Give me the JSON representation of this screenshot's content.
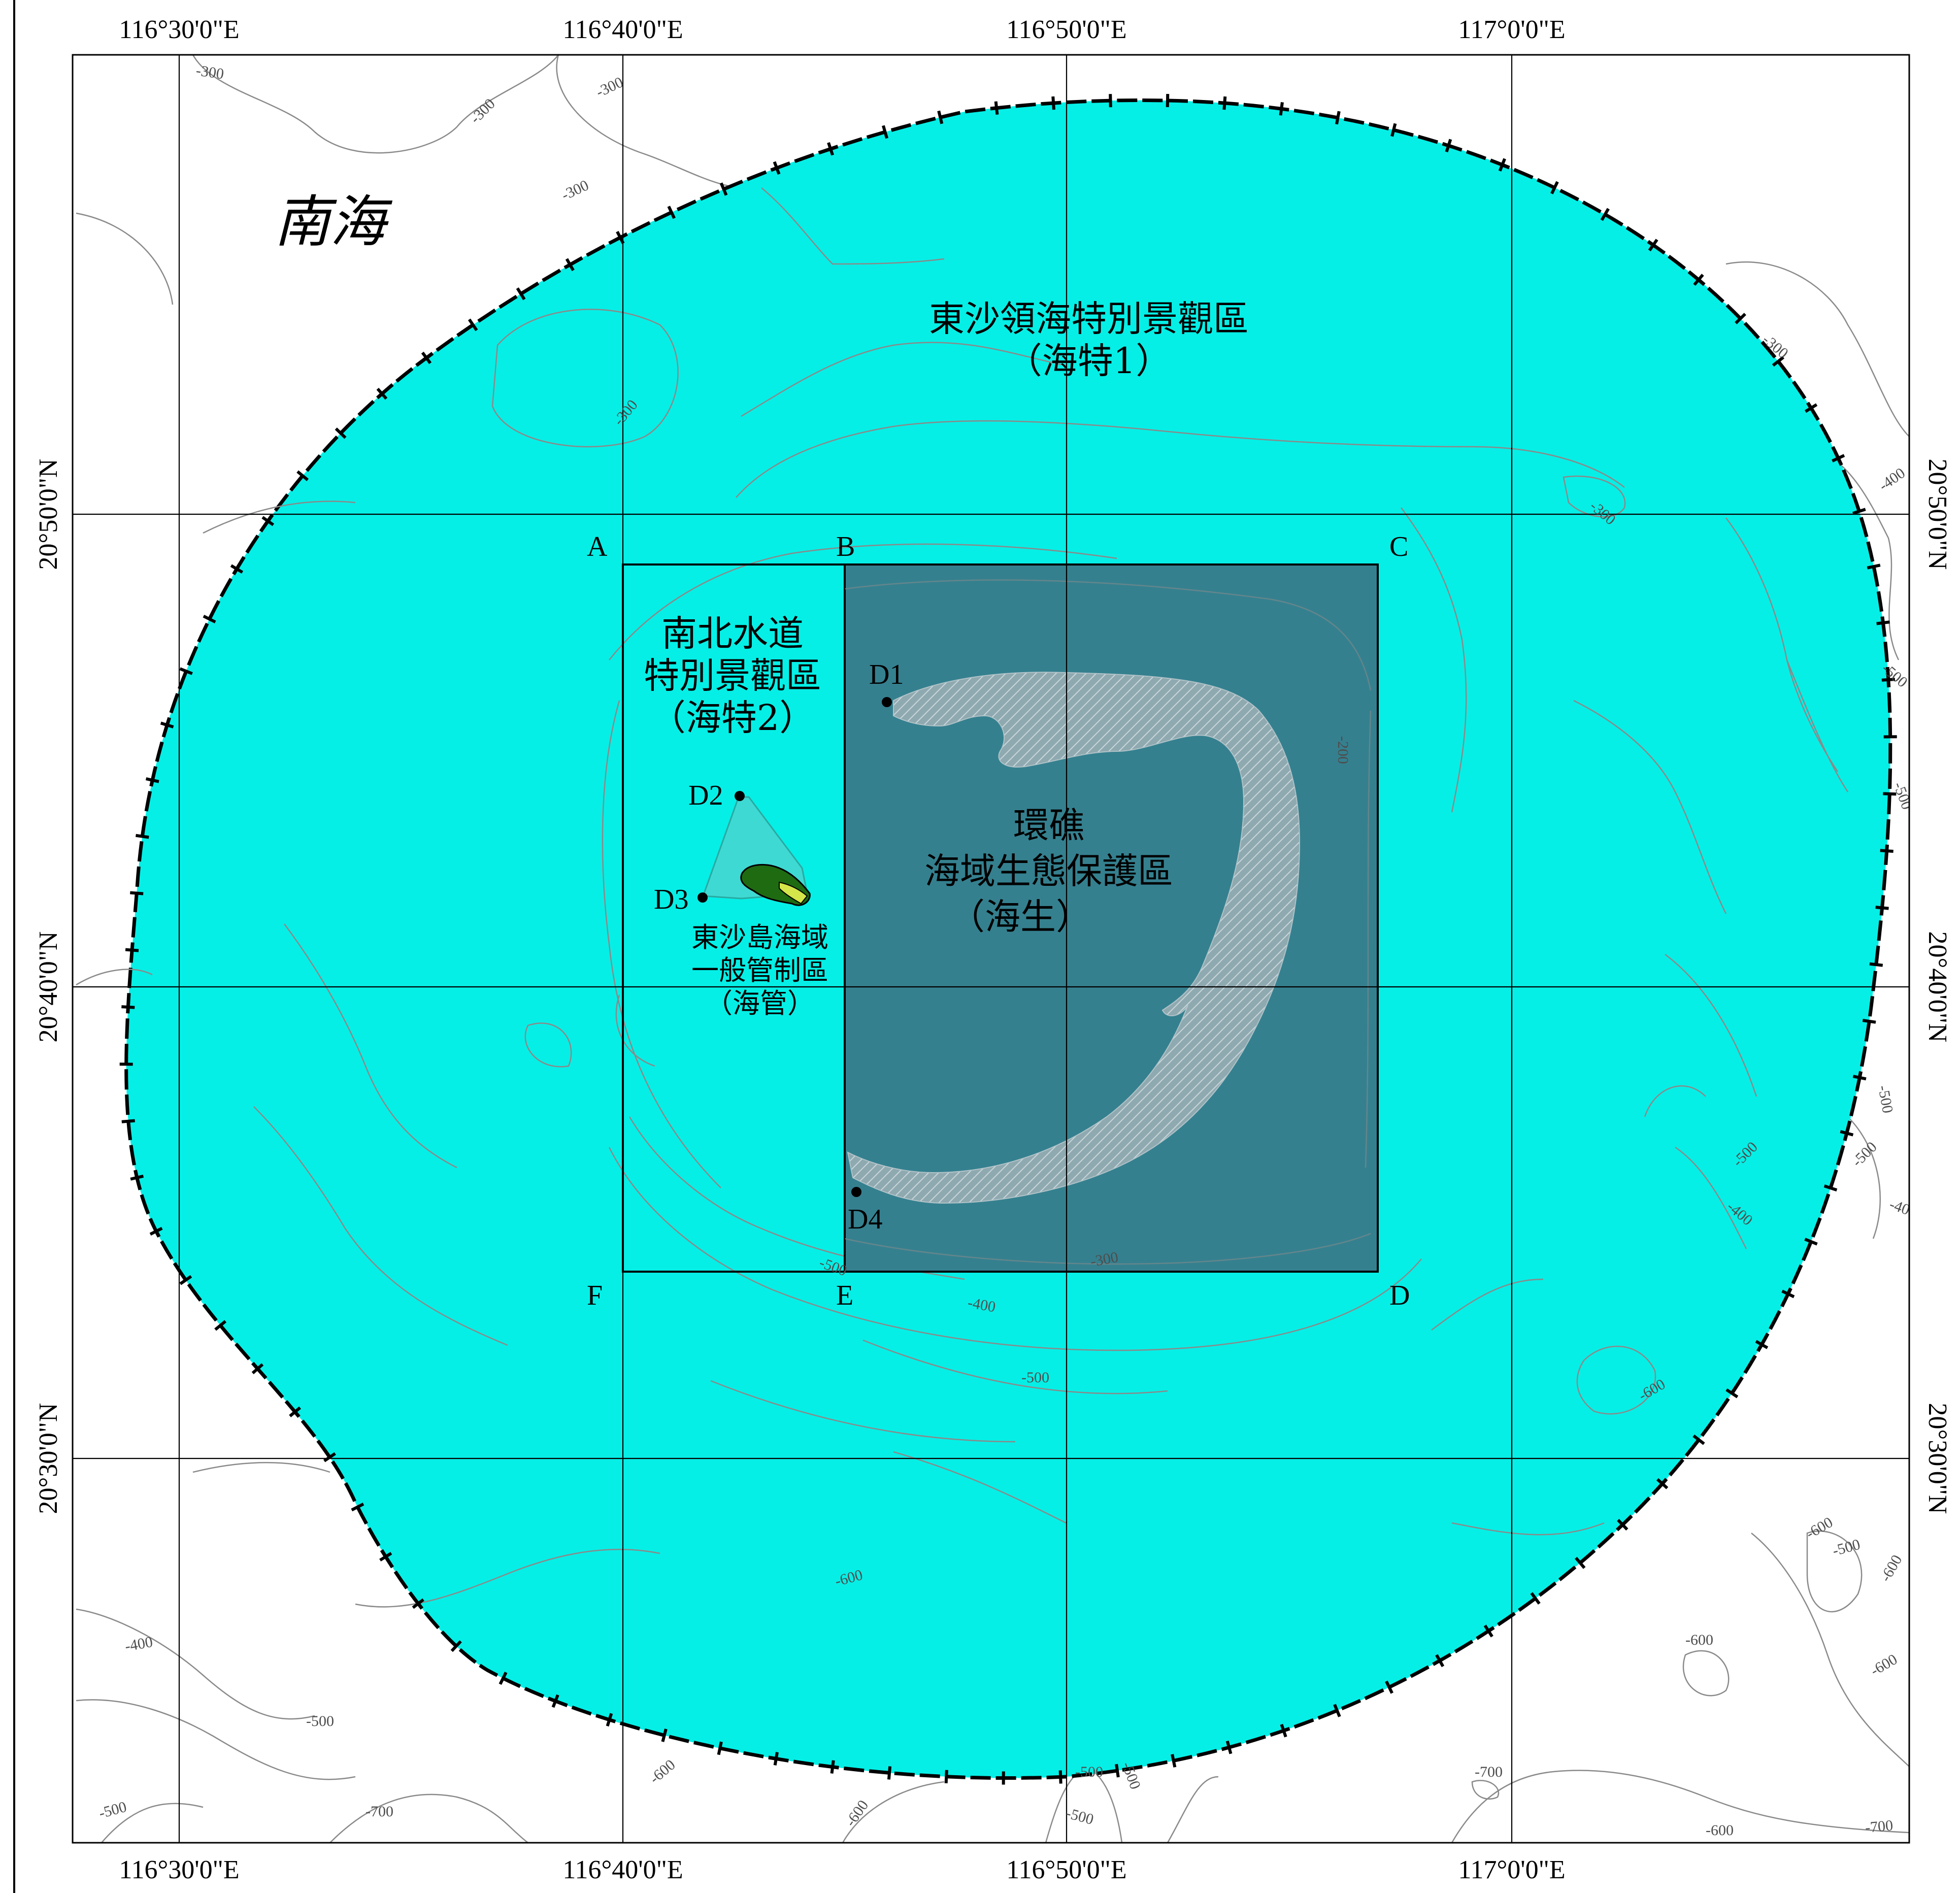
{
  "map": {
    "sea_name": "南海",
    "zones": {
      "territorial": {
        "line1": "東沙領海特別景觀區",
        "line2": "（海特1）"
      },
      "channel": {
        "line1": "南北水道",
        "line2": "特別景觀區",
        "line3": "（海特2）"
      },
      "atoll": {
        "line1": "環礁",
        "line2": "海域生態保護區",
        "line3": "（海生）"
      },
      "island": {
        "line1": "東沙島海域",
        "line2": "一般管制區",
        "line3": "（海管）"
      }
    },
    "corner_labels": {
      "a": "A",
      "b": "B",
      "c": "C",
      "d": "D",
      "e": "E",
      "f": "F"
    },
    "points": {
      "d1": "D1",
      "d2": "D2",
      "d3": "D3",
      "d4": "D4"
    },
    "longitudes": [
      "116°30'0\"E",
      "116°40'0\"E",
      "116°50'0\"E",
      "117°0'0\"E"
    ],
    "latitudes": [
      "20°50'0\"N",
      "20°40'0\"N",
      "20°30'0\"N"
    ],
    "contour_labels": {
      "c1": "-300",
      "c2": "-300",
      "c3": "-300",
      "c4": "-300",
      "c5": "-300",
      "c6": "-300",
      "c7": "-300",
      "c8": "-400",
      "c9": "-500",
      "c10": "-500",
      "c11": "-200",
      "c12": "-500",
      "c13": "-500",
      "c14": "-500",
      "c15": "-400",
      "c16": "-400",
      "c17": "-300",
      "c18": "-500",
      "c19": "-400",
      "c20": "-500",
      "c21": "-600",
      "c22": "-600",
      "c23": "-600",
      "c24": "-500",
      "c25": "-600",
      "c26": "-600",
      "c27": "-600",
      "c28": "-400",
      "c29": "-500",
      "c30": "-500",
      "c31": "-700",
      "c32": "-600",
      "c33": "-600",
      "c34": "-500",
      "c35": "-500",
      "c36": "-500",
      "c37": "-700",
      "c38": "-600",
      "c39": "-700"
    },
    "colors": {
      "territorial_fill": "#06efe6",
      "atoll_fill": "#35808f",
      "reef_fill": "#8fa9b0",
      "island_green": "#1f6b12",
      "contour": "#8a8a8a"
    }
  }
}
